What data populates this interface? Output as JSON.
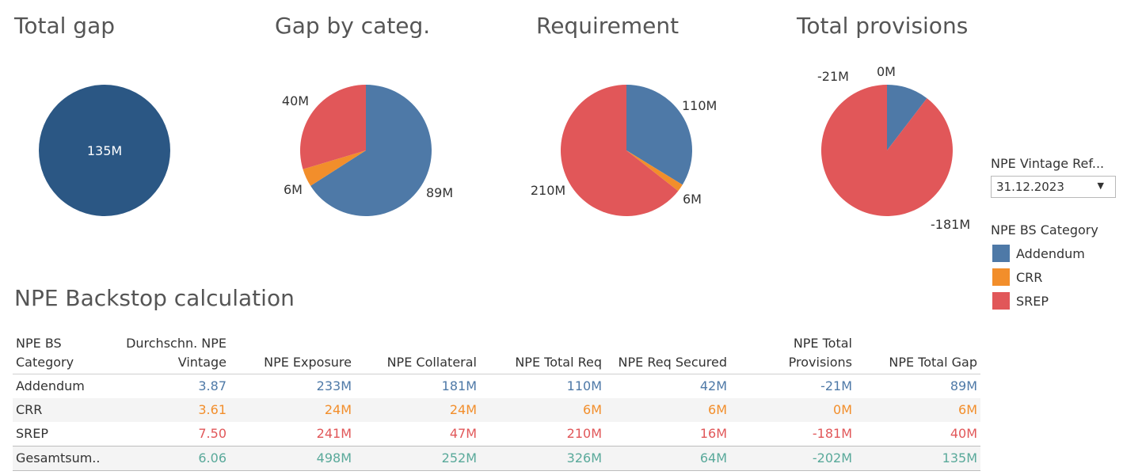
{
  "colors": {
    "Addendum": "#4e79a7",
    "CRR": "#f28e2b",
    "SREP": "#e15759",
    "Total": "#2b5784",
    "Gesamt": "#59a99a"
  },
  "chart_data": [
    {
      "type": "pie",
      "title": "Total gap",
      "slices": [
        {
          "label": "135M",
          "value": 135,
          "category": "Total"
        }
      ]
    },
    {
      "type": "pie",
      "title": "Gap by categ.",
      "slices": [
        {
          "label": "89M",
          "value": 89,
          "category": "Addendum"
        },
        {
          "label": "6M",
          "value": 6,
          "category": "CRR"
        },
        {
          "label": "40M",
          "value": 40,
          "category": "SREP"
        }
      ]
    },
    {
      "type": "pie",
      "title": "Requirement",
      "slices": [
        {
          "label": "110M",
          "value": 110,
          "category": "Addendum"
        },
        {
          "label": "6M",
          "value": 6,
          "category": "CRR"
        },
        {
          "label": "210M",
          "value": 210,
          "category": "SREP"
        }
      ]
    },
    {
      "type": "pie",
      "title": "Total provisions",
      "slices": [
        {
          "label": "-21M",
          "value": -21,
          "category": "Addendum"
        },
        {
          "label": "0M",
          "value": 0,
          "category": "CRR"
        },
        {
          "label": "-181M",
          "value": -181,
          "category": "SREP"
        }
      ]
    },
    {
      "type": "table",
      "title": "NPE Backstop calculation",
      "columns": [
        "NPE BS Category",
        "Durchschn. NPE Vintage",
        "NPE Exposure",
        "NPE Collateral",
        "NPE Total Req",
        "NPE Req Secured",
        "NPE Total Provisions",
        "NPE Total Gap"
      ],
      "rows": [
        {
          "category": "Addendum",
          "values": [
            "3.87",
            "233M",
            "181M",
            "110M",
            "42M",
            "-21M",
            "89M"
          ]
        },
        {
          "category": "CRR",
          "values": [
            "3.61",
            "24M",
            "24M",
            "6M",
            "6M",
            "0M",
            "6M"
          ]
        },
        {
          "category": "SREP",
          "values": [
            "7.50",
            "241M",
            "47M",
            "210M",
            "16M",
            "-181M",
            "40M"
          ]
        },
        {
          "category": "Gesamtsum..",
          "values": [
            "6.06",
            "498M",
            "252M",
            "326M",
            "64M",
            "-202M",
            "135M"
          ]
        }
      ]
    }
  ],
  "filter": {
    "label": "NPE Vintage Ref...",
    "value": "31.12.2023"
  },
  "legend": {
    "title": "NPE BS Category",
    "items": [
      {
        "label": "Addendum",
        "color": "#4e79a7"
      },
      {
        "label": "CRR",
        "color": "#f28e2b"
      },
      {
        "label": "SREP",
        "color": "#e15759"
      }
    ]
  },
  "table_header": {
    "col1_line1": "NPE BS",
    "col1_line2": "Category",
    "col2_line1": "Durchschn. NPE",
    "col2_line2": "Vintage",
    "col3": "NPE Exposure",
    "col4": "NPE Collateral",
    "col5": "NPE Total Req",
    "col6": "NPE Req Secured",
    "col7_line1": "NPE Total",
    "col7_line2": "Provisions",
    "col8": "NPE Total Gap"
  }
}
